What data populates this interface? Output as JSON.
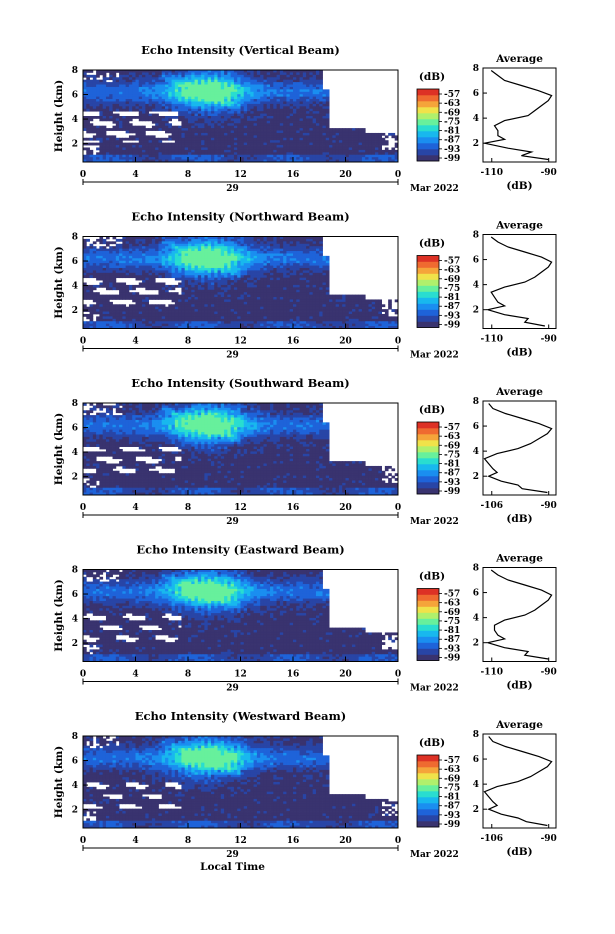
{
  "x_tick_labels": [
    "0",
    "4",
    "8",
    "12",
    "16",
    "20",
    "0"
  ],
  "day_label": "29",
  "month_label": "Mar 2022",
  "y_label": "Height (km)",
  "y_tick_labels": [
    "2",
    "4",
    "6",
    "8"
  ],
  "units_label": "(dB)",
  "x_axis_label": "Local Time",
  "avg_title": "Average",
  "avg_units": "(dB)",
  "colors": [
    "#39336f",
    "#2845a6",
    "#1e63d9",
    "#1a8ef0",
    "#18b8ee",
    "#29ddd0",
    "#67f09c",
    "#b0f06c",
    "#f0e24a",
    "#f5a43a",
    "#ef6a30",
    "#dd3125"
  ],
  "chart_data": [
    {
      "type": "heatmap",
      "title": "Echo Intensity (Vertical Beam)",
      "colorbar_ticks": [
        "-57",
        "-63",
        "-69",
        "-75",
        "-81",
        "-87",
        "-93",
        "-99"
      ],
      "colorbar_range": [
        -99,
        -57
      ],
      "x_range": [
        0,
        24
      ],
      "y_range": [
        0.5,
        8
      ],
      "avg_xticks": [
        "-110",
        "-90"
      ],
      "avg_xlim": [
        -110,
        -90
      ],
      "avg_profile": {
        "height": [
          0.7,
          1.0,
          1.3,
          1.6,
          2.0,
          2.3,
          2.6,
          3.0,
          3.4,
          3.8,
          4.2,
          4.6,
          5.0,
          5.4,
          5.8,
          6.2,
          6.6,
          7.0,
          7.4,
          7.8
        ],
        "db": [
          -91,
          -99,
          -96,
          -103,
          -110,
          -104,
          -106,
          -106,
          -107,
          -104,
          -97,
          -95,
          -93,
          -91,
          -90,
          -94,
          -99,
          -104,
          -106,
          -108
        ]
      }
    },
    {
      "type": "heatmap",
      "title": "Echo Intensity (Northward Beam)",
      "colorbar_ticks": [
        "-57",
        "-63",
        "-69",
        "-75",
        "-81",
        "-87",
        "-93",
        "-99"
      ],
      "colorbar_range": [
        -99,
        -57
      ],
      "x_range": [
        0,
        24
      ],
      "y_range": [
        0.5,
        8
      ],
      "avg_xticks": [
        "-110",
        "-90"
      ],
      "avg_xlim": [
        -110,
        -90
      ],
      "avg_profile": {
        "height": [
          0.7,
          1.0,
          1.3,
          1.6,
          2.0,
          2.3,
          2.6,
          3.0,
          3.4,
          3.8,
          4.2,
          4.6,
          5.0,
          5.4,
          5.8,
          6.2,
          6.6,
          7.0,
          7.4,
          7.8
        ],
        "db": [
          -92,
          -98,
          -97,
          -104,
          -109,
          -104,
          -106,
          -107,
          -108,
          -104,
          -98,
          -95,
          -93,
          -91,
          -90,
          -93,
          -98,
          -103,
          -106,
          -108
        ]
      }
    },
    {
      "type": "heatmap",
      "title": "Echo Intensity (Southward Beam)",
      "colorbar_ticks": [
        "-57",
        "-63",
        "-69",
        "-75",
        "-81",
        "-87",
        "-93",
        "-99"
      ],
      "colorbar_range": [
        -99,
        -57
      ],
      "x_range": [
        0,
        24
      ],
      "y_range": [
        0.5,
        8
      ],
      "avg_xticks": [
        "-106",
        "-90"
      ],
      "avg_xlim": [
        -106,
        -90
      ],
      "avg_profile": {
        "height": [
          0.7,
          1.0,
          1.3,
          1.6,
          2.0,
          2.3,
          2.6,
          3.0,
          3.4,
          3.8,
          4.2,
          4.6,
          5.0,
          5.4,
          5.8,
          6.2,
          6.6,
          7.0,
          7.4,
          7.8
        ],
        "db": [
          -91,
          -97,
          -98,
          -102,
          -105,
          -103,
          -104,
          -105,
          -106,
          -103,
          -98,
          -95,
          -93,
          -91,
          -90,
          -93,
          -97,
          -101,
          -104,
          -105
        ]
      }
    },
    {
      "type": "heatmap",
      "title": "Echo Intensity (Eastward Beam)",
      "colorbar_ticks": [
        "-57",
        "-63",
        "-69",
        "-75",
        "-81",
        "-87",
        "-93",
        "-99"
      ],
      "colorbar_range": [
        -99,
        -57
      ],
      "x_range": [
        0,
        24
      ],
      "y_range": [
        0.5,
        8
      ],
      "avg_xticks": [
        "-110",
        "-90"
      ],
      "avg_xlim": [
        -110,
        -90
      ],
      "avg_profile": {
        "height": [
          0.7,
          1.0,
          1.3,
          1.6,
          2.0,
          2.3,
          2.6,
          3.0,
          3.4,
          3.8,
          4.2,
          4.6,
          5.0,
          5.4,
          5.8,
          6.2,
          6.6,
          7.0,
          7.4,
          7.8
        ],
        "db": [
          -91,
          -98,
          -97,
          -104,
          -109,
          -104,
          -106,
          -107,
          -107,
          -104,
          -98,
          -95,
          -93,
          -91,
          -90,
          -93,
          -98,
          -103,
          -106,
          -108
        ]
      }
    },
    {
      "type": "heatmap",
      "title": "Echo Intensity (Westward Beam)",
      "colorbar_ticks": [
        "-57",
        "-63",
        "-69",
        "-75",
        "-81",
        "-87",
        "-93",
        "-99"
      ],
      "colorbar_range": [
        -99,
        -57
      ],
      "x_range": [
        0,
        24
      ],
      "y_range": [
        0.5,
        8
      ],
      "avg_xticks": [
        "-106",
        "-90"
      ],
      "avg_xlim": [
        -106,
        -90
      ],
      "avg_profile": {
        "height": [
          0.7,
          1.0,
          1.3,
          1.6,
          2.0,
          2.3,
          2.6,
          3.0,
          3.4,
          3.8,
          4.2,
          4.6,
          5.0,
          5.4,
          5.8,
          6.2,
          6.6,
          7.0,
          7.4,
          7.8
        ],
        "db": [
          -91,
          -96,
          -98,
          -102,
          -105,
          -103,
          -104,
          -105,
          -106,
          -103,
          -98,
          -95,
          -93,
          -91,
          -90,
          -93,
          -97,
          -101,
          -104,
          -105
        ]
      }
    }
  ]
}
